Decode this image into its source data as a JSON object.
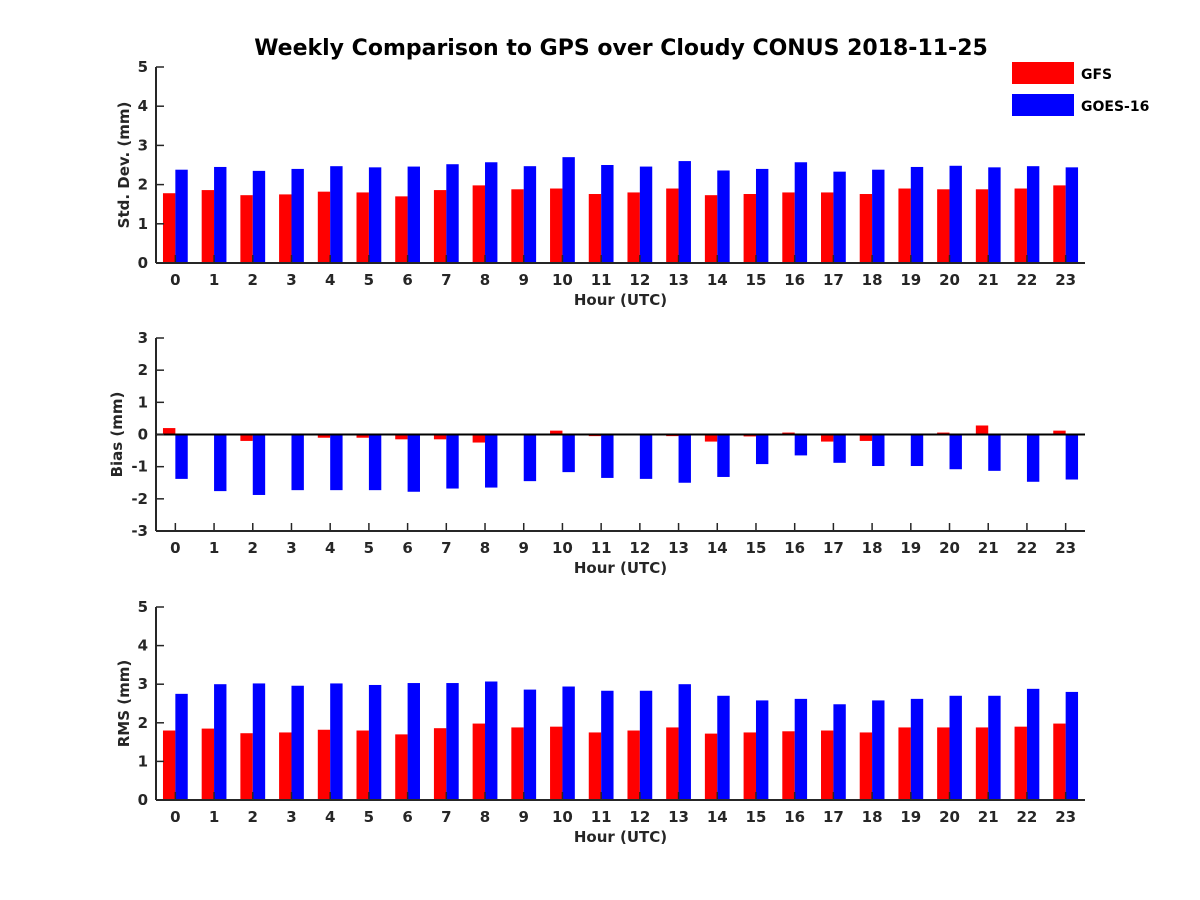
{
  "title": "Weekly Comparison to GPS over Cloudy CONUS 2018-11-25",
  "legend": {
    "placement": "top-right",
    "entries": [
      {
        "label": "GFS",
        "color": "#ff0000"
      },
      {
        "label": "GOES-16",
        "color": "#0000ff"
      }
    ]
  },
  "chart_data": [
    {
      "type": "bar",
      "ylabel": "Std. Dev. (mm)",
      "xlabel": "Hour (UTC)",
      "ylim": [
        0,
        5
      ],
      "yticks": [
        0,
        1,
        2,
        3,
        4,
        5
      ],
      "categories": [
        "0",
        "1",
        "2",
        "3",
        "4",
        "5",
        "6",
        "7",
        "8",
        "9",
        "10",
        "11",
        "12",
        "13",
        "14",
        "15",
        "16",
        "17",
        "18",
        "19",
        "20",
        "21",
        "22",
        "23"
      ],
      "grid": false,
      "series": [
        {
          "name": "GFS",
          "color": "#ff0000",
          "values": [
            1.78,
            1.86,
            1.73,
            1.75,
            1.82,
            1.8,
            1.7,
            1.86,
            1.98,
            1.88,
            1.9,
            1.76,
            1.8,
            1.9,
            1.73,
            1.76,
            1.8,
            1.8,
            1.76,
            1.9,
            1.88,
            1.88,
            1.9,
            1.98
          ]
        },
        {
          "name": "GOES-16",
          "color": "#0000ff",
          "values": [
            2.38,
            2.45,
            2.35,
            2.4,
            2.47,
            2.44,
            2.46,
            2.52,
            2.57,
            2.47,
            2.7,
            2.5,
            2.46,
            2.6,
            2.36,
            2.4,
            2.57,
            2.33,
            2.38,
            2.45,
            2.48,
            2.44,
            2.47,
            2.44
          ]
        }
      ]
    },
    {
      "type": "bar",
      "ylabel": "Bias (mm)",
      "xlabel": "Hour (UTC)",
      "ylim": [
        -3,
        3
      ],
      "yticks": [
        -3,
        -2,
        -1,
        0,
        1,
        2,
        3
      ],
      "categories": [
        "0",
        "1",
        "2",
        "3",
        "4",
        "5",
        "6",
        "7",
        "8",
        "9",
        "10",
        "11",
        "12",
        "13",
        "14",
        "15",
        "16",
        "17",
        "18",
        "19",
        "20",
        "21",
        "22",
        "23"
      ],
      "grid": false,
      "series": [
        {
          "name": "GFS",
          "color": "#ff0000",
          "values": [
            0.2,
            -0.03,
            -0.2,
            -0.03,
            -0.1,
            -0.1,
            -0.15,
            -0.15,
            -0.25,
            -0.02,
            0.12,
            -0.05,
            -0.02,
            -0.05,
            -0.22,
            -0.06,
            0.06,
            -0.22,
            -0.2,
            0.0,
            0.06,
            0.28,
            0.0,
            0.12
          ]
        },
        {
          "name": "GOES-16",
          "color": "#0000ff",
          "values": [
            -1.38,
            -1.76,
            -1.88,
            -1.73,
            -1.73,
            -1.73,
            -1.78,
            -1.68,
            -1.65,
            -1.45,
            -1.17,
            -1.35,
            -1.38,
            -1.5,
            -1.32,
            -0.92,
            -0.65,
            -0.88,
            -0.98,
            -0.98,
            -1.08,
            -1.13,
            -1.47,
            -1.4
          ]
        }
      ]
    },
    {
      "type": "bar",
      "ylabel": "RMS (mm)",
      "xlabel": "Hour (UTC)",
      "ylim": [
        0,
        5
      ],
      "yticks": [
        0,
        1,
        2,
        3,
        4,
        5
      ],
      "categories": [
        "0",
        "1",
        "2",
        "3",
        "4",
        "5",
        "6",
        "7",
        "8",
        "9",
        "10",
        "11",
        "12",
        "13",
        "14",
        "15",
        "16",
        "17",
        "18",
        "19",
        "20",
        "21",
        "22",
        "23"
      ],
      "grid": false,
      "series": [
        {
          "name": "GFS",
          "color": "#ff0000",
          "values": [
            1.8,
            1.85,
            1.73,
            1.75,
            1.82,
            1.8,
            1.7,
            1.86,
            1.98,
            1.88,
            1.9,
            1.75,
            1.8,
            1.88,
            1.72,
            1.75,
            1.78,
            1.8,
            1.75,
            1.88,
            1.88,
            1.88,
            1.9,
            1.98
          ]
        },
        {
          "name": "GOES-16",
          "color": "#0000ff",
          "values": [
            2.75,
            3.0,
            3.02,
            2.96,
            3.02,
            2.98,
            3.03,
            3.03,
            3.07,
            2.86,
            2.94,
            2.83,
            2.83,
            3.0,
            2.7,
            2.58,
            2.62,
            2.48,
            2.58,
            2.62,
            2.7,
            2.7,
            2.88,
            2.8
          ]
        }
      ]
    }
  ]
}
